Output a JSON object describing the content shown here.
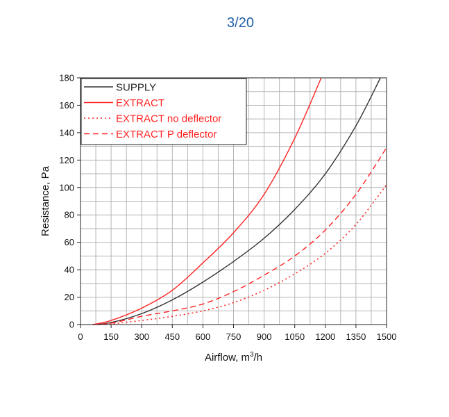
{
  "header": {
    "page_indicator": "3/20"
  },
  "chart_data": {
    "type": "line",
    "xlabel": "Airflow, m",
    "xlabel_sup": "3",
    "xlabel_tail": "/h",
    "ylabel": "Resistance, Pa",
    "xlim": [
      0,
      1500
    ],
    "ylim": [
      0,
      180
    ],
    "x_ticks": [
      0,
      150,
      300,
      450,
      600,
      750,
      900,
      1050,
      1200,
      1350,
      1500
    ],
    "y_ticks": [
      0,
      20,
      40,
      60,
      80,
      100,
      120,
      140,
      160,
      180
    ],
    "grid": true,
    "legend_position": "top-left",
    "series": [
      {
        "name": "SUPPLY",
        "color": "#333333",
        "dash": "solid",
        "x": [
          60,
          150,
          300,
          450,
          600,
          750,
          900,
          1050,
          1200,
          1350,
          1470
        ],
        "y": [
          0,
          1.5,
          8,
          18,
          31,
          46,
          63,
          84,
          110,
          145,
          180
        ]
      },
      {
        "name": "EXTRACT",
        "color": "#ff2222",
        "dash": "solid",
        "x": [
          60,
          150,
          300,
          450,
          600,
          750,
          900,
          1050,
          1180
        ],
        "y": [
          0,
          3,
          12,
          25,
          45,
          67,
          95,
          136,
          180
        ]
      },
      {
        "name": "EXTRACT no deflector",
        "color": "#ff2222",
        "dash": "dotted",
        "x": [
          60,
          150,
          300,
          450,
          600,
          750,
          900,
          1050,
          1200,
          1350,
          1500
        ],
        "y": [
          0,
          0.5,
          3,
          6,
          10,
          16,
          25,
          37,
          52,
          73,
          102
        ]
      },
      {
        "name": "EXTRACT P deflector",
        "color": "#ff2222",
        "dash": "dashed",
        "x": [
          60,
          150,
          300,
          450,
          600,
          750,
          900,
          1050,
          1200,
          1350,
          1500
        ],
        "y": [
          0,
          1,
          6,
          10,
          15,
          24,
          36,
          50,
          69,
          95,
          129
        ]
      }
    ]
  }
}
